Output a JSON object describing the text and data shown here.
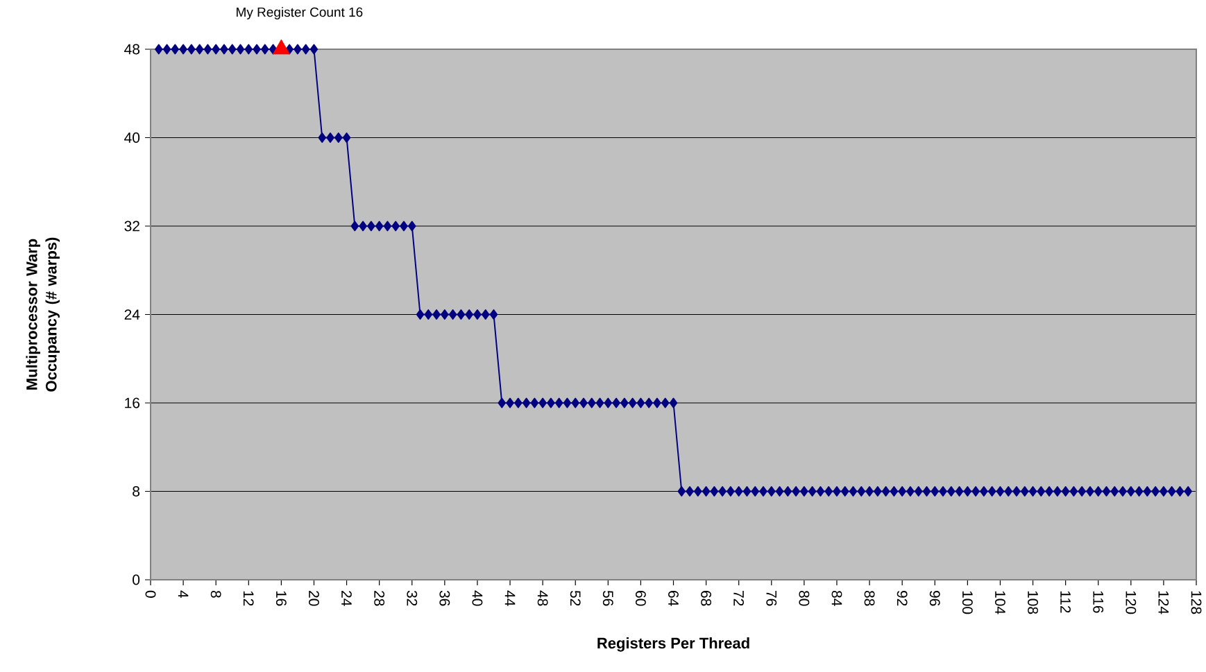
{
  "chart_data": {
    "type": "line",
    "xlabel": "Registers Per Thread",
    "ylabel": "Multiprocessor Warp Occupancy (# warps)",
    "x": [
      1,
      2,
      3,
      4,
      5,
      6,
      7,
      8,
      9,
      10,
      11,
      12,
      13,
      14,
      15,
      16,
      17,
      18,
      19,
      20,
      21,
      22,
      23,
      24,
      25,
      26,
      27,
      28,
      29,
      30,
      31,
      32,
      33,
      34,
      35,
      36,
      37,
      38,
      39,
      40,
      41,
      42,
      43,
      44,
      45,
      46,
      47,
      48,
      49,
      50,
      51,
      52,
      53,
      54,
      55,
      56,
      57,
      58,
      59,
      60,
      61,
      62,
      63,
      64,
      65,
      66,
      67,
      68,
      69,
      70,
      71,
      72,
      73,
      74,
      75,
      76,
      77,
      78,
      79,
      80,
      81,
      82,
      83,
      84,
      85,
      86,
      87,
      88,
      89,
      90,
      91,
      92,
      93,
      94,
      95,
      96,
      97,
      98,
      99,
      100,
      101,
      102,
      103,
      104,
      105,
      106,
      107,
      108,
      109,
      110,
      111,
      112,
      113,
      114,
      115,
      116,
      117,
      118,
      119,
      120,
      121,
      122,
      123,
      124,
      125,
      126,
      127
    ],
    "series": [
      {
        "color": "#000080",
        "marker": "diamond",
        "values": [
          48,
          48,
          48,
          48,
          48,
          48,
          48,
          48,
          48,
          48,
          48,
          48,
          48,
          48,
          48,
          null,
          48,
          48,
          48,
          48,
          40,
          40,
          40,
          40,
          32,
          32,
          32,
          32,
          32,
          32,
          32,
          32,
          24,
          24,
          24,
          24,
          24,
          24,
          24,
          24,
          24,
          24,
          16,
          16,
          16,
          16,
          16,
          16,
          16,
          16,
          16,
          16,
          16,
          16,
          16,
          16,
          16,
          16,
          16,
          16,
          16,
          16,
          16,
          16,
          8,
          8,
          8,
          8,
          8,
          8,
          8,
          8,
          8,
          8,
          8,
          8,
          8,
          8,
          8,
          8,
          8,
          8,
          8,
          8,
          8,
          8,
          8,
          8,
          8,
          8,
          8,
          8,
          8,
          8,
          8,
          8,
          8,
          8,
          8,
          8,
          8,
          8,
          8,
          8,
          8,
          8,
          8,
          8,
          8,
          8,
          8,
          8,
          8,
          8,
          8,
          8,
          8,
          8,
          8,
          8,
          8,
          8,
          8,
          8,
          8,
          8,
          8
        ]
      },
      {
        "type": "scatter",
        "color": "#ff0000",
        "marker": "triangle",
        "x": [
          16
        ],
        "values": [
          48
        ]
      }
    ],
    "annotations": [
      {
        "text": "My Register Count 16",
        "x": 16,
        "y": 48
      }
    ],
    "xlim": [
      0,
      128
    ],
    "xticks": [
      0,
      4,
      8,
      12,
      16,
      20,
      24,
      28,
      32,
      36,
      40,
      44,
      48,
      52,
      56,
      60,
      64,
      68,
      72,
      76,
      80,
      84,
      88,
      92,
      96,
      100,
      104,
      108,
      112,
      116,
      120,
      124,
      128
    ],
    "ylim": [
      0,
      48
    ],
    "yticks": [
      0,
      8,
      16,
      24,
      32,
      40,
      48
    ],
    "grid": "y"
  }
}
